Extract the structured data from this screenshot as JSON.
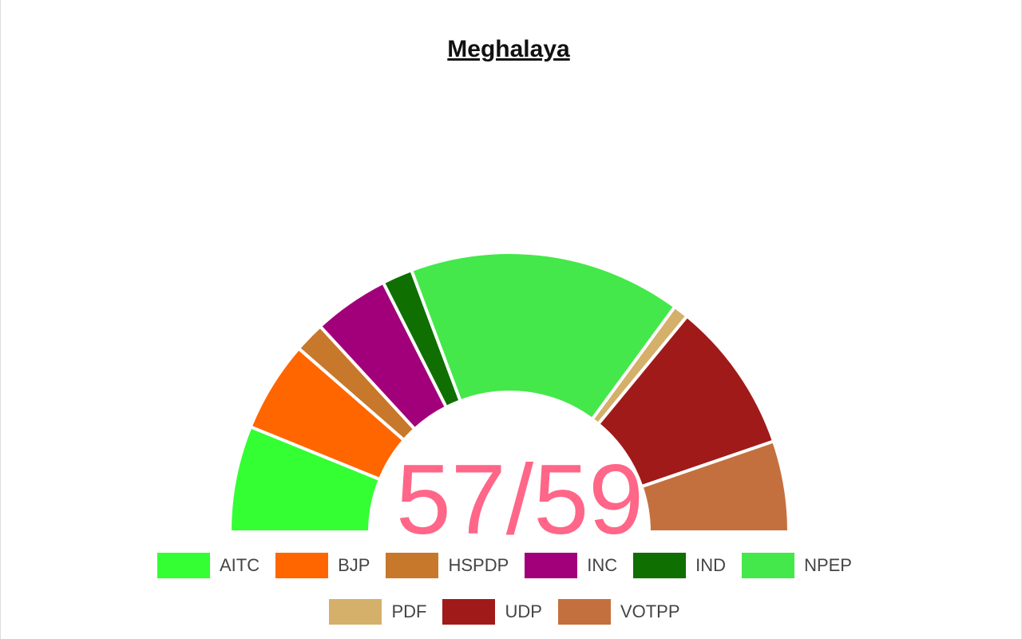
{
  "chart_data": {
    "type": "semi-donut",
    "title": "Meghalaya",
    "center_label": "57/59",
    "categories": [
      "AITC",
      "BJP",
      "HSPDP",
      "INC",
      "IND",
      "NPEP",
      "PDF",
      "UDP",
      "VOTPP"
    ],
    "values": [
      7,
      6,
      2,
      5,
      2,
      18,
      1,
      10,
      6
    ],
    "colors": [
      "#33ff33",
      "#ff6600",
      "#c8782a",
      "#a2007a",
      "#0f6f00",
      "#44e84a",
      "#d4b06a",
      "#a01a1a",
      "#c4703e"
    ]
  }
}
